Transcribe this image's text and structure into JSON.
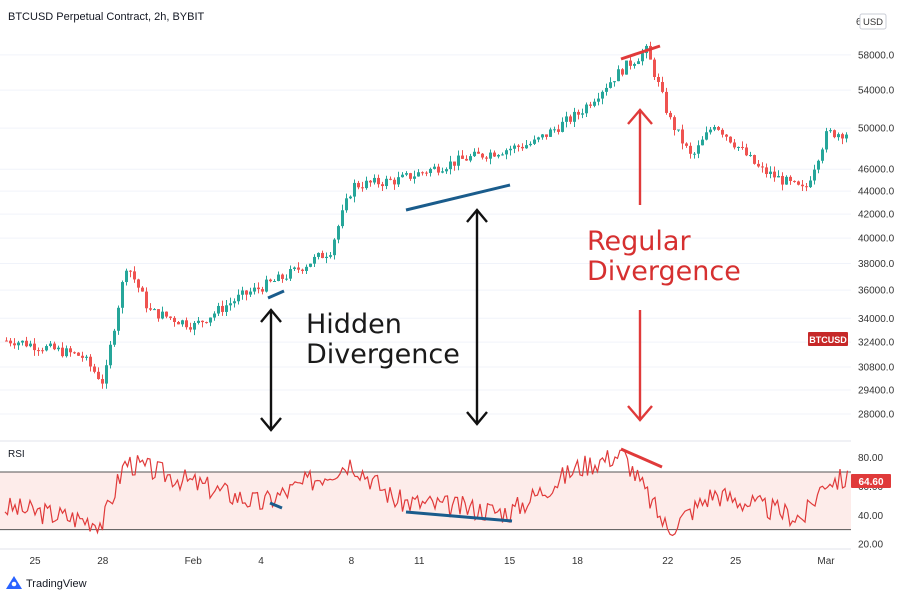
{
  "header": {
    "symbol_title": "BTCUSD Perpetual Contract, 2h, BYBIT",
    "currency_badge": "USD",
    "top_clipped_tick": "6"
  },
  "footer": {
    "brand": "TradingView"
  },
  "colors": {
    "up_candle": "#26a69a",
    "down_candle": "#ef5350",
    "rsi_line": "#e03a3a",
    "rsi_band_fill": "#fdecea",
    "hidden_divergence_line": "#1a5c8c",
    "regular_divergence_line": "#e03a3a",
    "regular_text": "#d63030",
    "hidden_text": "#1a1a1a",
    "price_badge_bg": "#c62828",
    "grid": "#f0f3fa",
    "axis_text": "#333333"
  },
  "annotations": {
    "hidden_line1": "Hidden",
    "hidden_line2": "Divergence",
    "regular_line1": "Regular",
    "regular_line2": "Divergence"
  },
  "chart_data": [
    {
      "type": "candlestick",
      "title": "BTCUSD Perpetual Contract, 2h, BYBIT",
      "price_axis_ticks": [
        "58000.0",
        "54000.0",
        "50000.0",
        "46000.0",
        "44000.0",
        "42000.0",
        "40000.0",
        "38000.0",
        "36000.0",
        "34000.0",
        "32400.0",
        "30800.0",
        "29400.0",
        "28000.0"
      ],
      "time_axis_ticks": [
        "25",
        "28",
        "Feb",
        "4",
        "8",
        "11",
        "15",
        "18",
        "22",
        "25",
        "Mar"
      ],
      "y_scale": "log",
      "ylim": [
        27000,
        61000
      ],
      "last_price_label": "BTCUSD",
      "key_closes": [
        {
          "date": "Jan 24",
          "close": 32500
        },
        {
          "date": "Jan 27",
          "close": 31500
        },
        {
          "date": "Jan 28",
          "close": 29800
        },
        {
          "date": "Jan 29",
          "close": 38000
        },
        {
          "date": "Jan 30",
          "close": 34500
        },
        {
          "date": "Feb 1",
          "close": 33500
        },
        {
          "date": "Feb 3",
          "close": 35500
        },
        {
          "date": "Feb 5",
          "close": 37000
        },
        {
          "date": "Feb 7",
          "close": 39000
        },
        {
          "date": "Feb 8",
          "close": 44500
        },
        {
          "date": "Feb 10",
          "close": 45000
        },
        {
          "date": "Feb 13",
          "close": 47000
        },
        {
          "date": "Feb 16",
          "close": 48500
        },
        {
          "date": "Feb 18",
          "close": 51500
        },
        {
          "date": "Feb 20",
          "close": 56500
        },
        {
          "date": "Feb 21",
          "close": 58500
        },
        {
          "date": "Feb 22",
          "close": 51000
        },
        {
          "date": "Feb 23",
          "close": 47000
        },
        {
          "date": "Feb 24",
          "close": 50500
        },
        {
          "date": "Feb 26",
          "close": 46000
        },
        {
          "date": "Feb 28",
          "close": 44000
        },
        {
          "date": "Mar 1",
          "close": 49500
        }
      ]
    },
    {
      "type": "line",
      "title": "RSI",
      "ylim": [
        18,
        88
      ],
      "y_ticks": [
        "80.00",
        "60.00",
        "40.00",
        "20.00"
      ],
      "bands": [
        70,
        30
      ],
      "current_value": "64.60",
      "key_values": [
        {
          "date": "Jan 24",
          "value": 45
        },
        {
          "date": "Jan 28",
          "value": 35
        },
        {
          "date": "Jan 29",
          "value": 77
        },
        {
          "date": "Feb 4",
          "value": 48
        },
        {
          "date": "Feb 8",
          "value": 77
        },
        {
          "date": "Feb 10",
          "value": 50
        },
        {
          "date": "Feb 15",
          "value": 42
        },
        {
          "date": "Feb 18",
          "value": 73
        },
        {
          "date": "Feb 20",
          "value": 83
        },
        {
          "date": "Feb 22",
          "value": 30
        },
        {
          "date": "Feb 24",
          "value": 55
        },
        {
          "date": "Feb 28",
          "value": 38
        },
        {
          "date": "Mar 1",
          "value": 64.6
        }
      ]
    }
  ]
}
